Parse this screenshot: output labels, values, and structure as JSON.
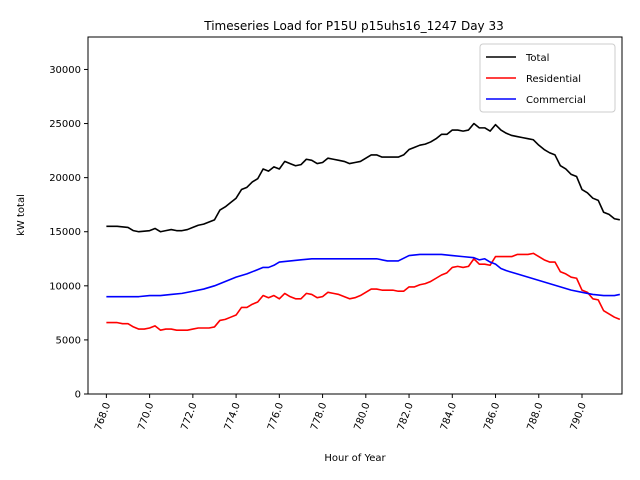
{
  "chart_data": {
    "type": "line",
    "title": "Timeseries Load for P15U p15uhs16_1247  Day 33",
    "xlabel": "Hour of Year",
    "ylabel": "kW total",
    "xlim": [
      767.15,
      791.85
    ],
    "ylim": [
      0,
      33000
    ],
    "xticks": [
      768,
      770,
      772,
      774,
      776,
      778,
      780,
      782,
      784,
      786,
      788,
      790
    ],
    "xtick_labels": [
      "768.0",
      "770.0",
      "772.0",
      "774.0",
      "776.0",
      "778.0",
      "780.0",
      "782.0",
      "784.0",
      "786.0",
      "788.0",
      "790.0"
    ],
    "yticks": [
      0,
      5000,
      10000,
      15000,
      20000,
      25000,
      30000
    ],
    "ytick_labels": [
      "0",
      "5000",
      "10000",
      "15000",
      "20000",
      "25000",
      "30000"
    ],
    "legend_position": "top-right",
    "grid": false,
    "series": [
      {
        "name": "Total",
        "color": "#000000",
        "x": [
          768.0,
          768.5,
          769.0,
          769.25,
          769.5,
          770.0,
          770.25,
          770.5,
          770.75,
          771.0,
          771.25,
          771.5,
          771.75,
          772.0,
          772.25,
          772.5,
          772.75,
          773.0,
          773.25,
          773.5,
          773.75,
          774.0,
          774.25,
          774.5,
          774.75,
          775.0,
          775.25,
          775.5,
          775.75,
          776.0,
          776.25,
          776.5,
          776.75,
          777.0,
          777.25,
          777.5,
          777.75,
          778.0,
          778.25,
          778.5,
          778.75,
          779.0,
          779.25,
          779.5,
          779.75,
          780.0,
          780.25,
          780.5,
          780.75,
          781.0,
          781.25,
          781.5,
          781.75,
          782.0,
          782.25,
          782.5,
          782.75,
          783.0,
          783.25,
          783.5,
          783.75,
          784.0,
          784.25,
          784.5,
          784.75,
          785.0,
          785.25,
          785.5,
          785.75,
          786.0,
          786.25,
          786.5,
          786.75,
          787.0,
          787.25,
          787.5,
          787.75,
          788.0,
          788.25,
          788.5,
          788.75,
          789.0,
          789.25,
          789.5,
          789.75,
          790.0,
          790.25,
          790.5,
          790.75,
          791.0,
          791.25,
          791.5,
          791.75
        ],
        "values": [
          15500,
          15500,
          15400,
          15100,
          15000,
          15100,
          15300,
          15000,
          15100,
          15200,
          15100,
          15100,
          15200,
          15400,
          15600,
          15700,
          15900,
          16100,
          17000,
          17300,
          17700,
          18100,
          18900,
          19100,
          19600,
          19900,
          20800,
          20600,
          21000,
          20800,
          21500,
          21300,
          21100,
          21200,
          21700,
          21600,
          21300,
          21400,
          21800,
          21700,
          21600,
          21500,
          21300,
          21400,
          21500,
          21800,
          22100,
          22100,
          21900,
          21900,
          21900,
          21900,
          22100,
          22600,
          22800,
          23000,
          23100,
          23300,
          23600,
          24000,
          24000,
          24400,
          24400,
          24300,
          24400,
          25000,
          24600,
          24600,
          24300,
          24900,
          24400,
          24100,
          23900,
          23800,
          23700,
          23600,
          23500,
          23000,
          22600,
          22300,
          22100,
          21100,
          20800,
          20300,
          20100,
          18900,
          18600,
          18100,
          17900,
          16800,
          16600,
          16200,
          16100
        ]
      },
      {
        "name": "Residential",
        "color": "#ff0000",
        "x": [
          768.0,
          768.5,
          768.75,
          769.0,
          769.25,
          769.5,
          769.75,
          770.0,
          770.25,
          770.5,
          770.75,
          771.0,
          771.25,
          771.5,
          771.75,
          772.0,
          772.25,
          772.5,
          772.75,
          773.0,
          773.25,
          773.5,
          773.75,
          774.0,
          774.25,
          774.5,
          774.75,
          775.0,
          775.25,
          775.5,
          775.75,
          776.0,
          776.25,
          776.5,
          776.75,
          777.0,
          777.25,
          777.5,
          777.75,
          778.0,
          778.25,
          778.5,
          778.75,
          779.0,
          779.25,
          779.5,
          779.75,
          780.0,
          780.25,
          780.5,
          780.75,
          781.0,
          781.25,
          781.5,
          781.75,
          782.0,
          782.25,
          782.5,
          782.75,
          783.0,
          783.25,
          783.5,
          783.75,
          784.0,
          784.25,
          784.5,
          784.75,
          785.0,
          785.25,
          785.5,
          785.75,
          786.0,
          786.25,
          786.5,
          786.75,
          787.0,
          787.25,
          787.5,
          787.75,
          788.0,
          788.25,
          788.5,
          788.75,
          789.0,
          789.25,
          789.5,
          789.75,
          790.0,
          790.25,
          790.5,
          790.75,
          791.0,
          791.25,
          791.5,
          791.75
        ],
        "values": [
          6600,
          6600,
          6500,
          6500,
          6200,
          6000,
          6000,
          6100,
          6300,
          5900,
          6000,
          6000,
          5900,
          5900,
          5900,
          6000,
          6100,
          6100,
          6100,
          6200,
          6800,
          6900,
          7100,
          7300,
          8000,
          8000,
          8300,
          8500,
          9100,
          8900,
          9100,
          8800,
          9300,
          9000,
          8800,
          8800,
          9300,
          9200,
          8900,
          9000,
          9400,
          9300,
          9200,
          9000,
          8800,
          8900,
          9100,
          9400,
          9700,
          9700,
          9600,
          9600,
          9600,
          9500,
          9500,
          9900,
          9900,
          10100,
          10200,
          10400,
          10700,
          11000,
          11200,
          11700,
          11800,
          11700,
          11800,
          12500,
          12000,
          12000,
          11900,
          12700,
          12700,
          12700,
          12700,
          12900,
          12900,
          12900,
          13000,
          12700,
          12400,
          12200,
          12200,
          11300,
          11100,
          10800,
          10700,
          9600,
          9400,
          8800,
          8700,
          7700,
          7400,
          7100,
          6900
        ]
      },
      {
        "name": "Commercial",
        "color": "#0000ff",
        "x": [
          768.0,
          768.5,
          769.0,
          769.5,
          770.0,
          770.5,
          771.0,
          771.5,
          772.0,
          772.5,
          773.0,
          773.5,
          774.0,
          774.5,
          775.0,
          775.25,
          775.5,
          775.75,
          776.0,
          776.5,
          777.0,
          777.5,
          778.0,
          778.5,
          779.0,
          779.5,
          780.0,
          780.5,
          781.0,
          781.25,
          781.5,
          782.0,
          782.5,
          783.0,
          783.5,
          784.0,
          784.5,
          785.0,
          785.25,
          785.5,
          785.75,
          786.0,
          786.25,
          786.5,
          787.0,
          787.5,
          788.0,
          788.5,
          789.0,
          789.5,
          790.0,
          790.5,
          791.0,
          791.5,
          791.75
        ],
        "values": [
          9000,
          9000,
          9000,
          9000,
          9100,
          9100,
          9200,
          9300,
          9500,
          9700,
          10000,
          10400,
          10800,
          11100,
          11500,
          11700,
          11700,
          11900,
          12200,
          12300,
          12400,
          12500,
          12500,
          12500,
          12500,
          12500,
          12500,
          12500,
          12300,
          12300,
          12300,
          12800,
          12900,
          12900,
          12900,
          12800,
          12700,
          12600,
          12400,
          12500,
          12200,
          12000,
          11600,
          11400,
          11100,
          10800,
          10500,
          10200,
          9900,
          9600,
          9400,
          9200,
          9100,
          9100,
          9200
        ]
      }
    ]
  }
}
